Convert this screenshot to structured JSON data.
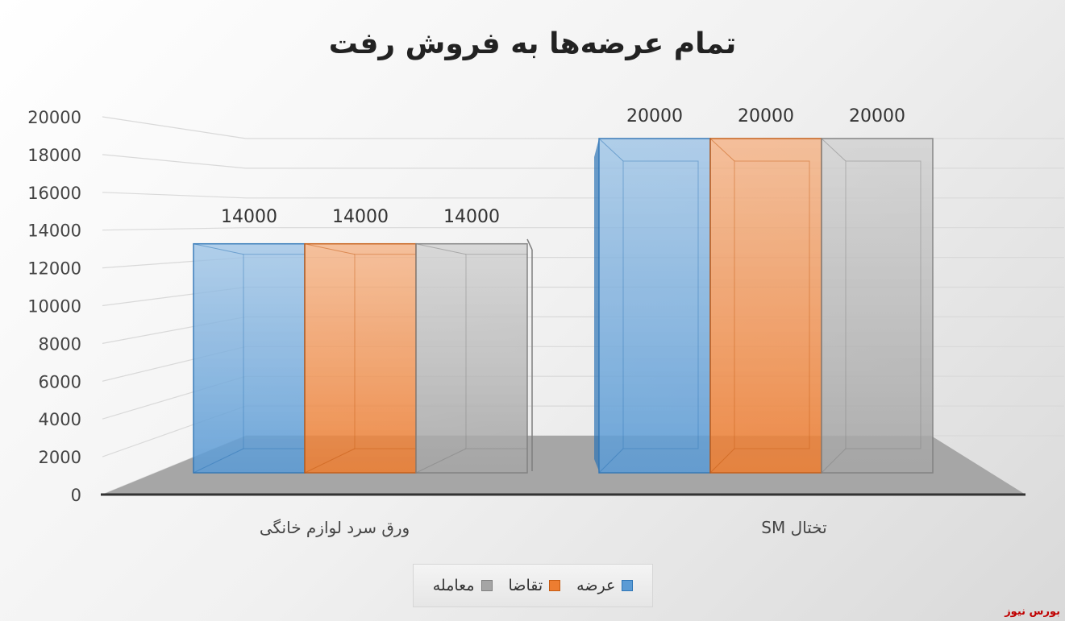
{
  "chart_data": {
    "type": "bar",
    "title": "تمام عرضه‌ها به فروش رفت",
    "categories": [
      "ورق سرد لوازم خانگی",
      "تختال SM"
    ],
    "series": [
      {
        "name": "عرضه",
        "values": [
          14000,
          20000
        ]
      },
      {
        "name": "تقاضا",
        "values": [
          14000,
          20000
        ]
      },
      {
        "name": "معامله",
        "values": [
          14000,
          20000
        ]
      }
    ],
    "data_labels": [
      "14000",
      "14000",
      "14000",
      "20000",
      "20000",
      "20000"
    ],
    "yticks": [
      "0",
      "2000",
      "4000",
      "6000",
      "8000",
      "10000",
      "12000",
      "14000",
      "16000",
      "18000",
      "20000"
    ],
    "ylim": [
      0,
      20000
    ],
    "grid": true,
    "legend": "bottom",
    "colors": {
      "عرضه": "#5b9bd5",
      "تقاضا": "#ed7d31",
      "معامله": "#a5a5a5"
    }
  },
  "watermark": "بورس نیوز",
  "legend_icon": "square-swatch"
}
